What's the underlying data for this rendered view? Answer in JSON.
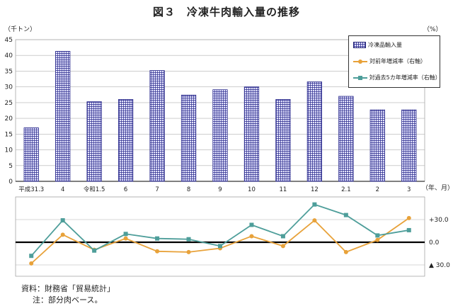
{
  "title": "図３　冷凍牛肉輸入量の推移",
  "left_unit": "（千トン）",
  "right_unit": "（%）",
  "x_unit": "（年、月）",
  "notes": {
    "source": "資料：財務省「貿易統計」",
    "remark": "注：部分肉ベース。"
  },
  "legend": {
    "volume": "冷凍品輸入量",
    "yoy": "対前年増減率（右軸）",
    "vs5y": "対過去5カ年増減率（右軸）"
  },
  "colors": {
    "bar_fill": "#e6e6ff",
    "bar_hatch": "#2a2a8c",
    "yoy": "#e8a23a",
    "vs5y": "#4e9e9a",
    "axis": "#000000",
    "grid": "#b0b0b0"
  },
  "chart_data": [
    {
      "type": "bar",
      "categories": [
        "平成31.3",
        "4",
        "令和1.5",
        "6",
        "7",
        "8",
        "9",
        "10",
        "11",
        "12",
        "2.1",
        "2",
        "3"
      ],
      "series": [
        {
          "name": "冷凍品輸入量",
          "values": [
            17.0,
            41.3,
            25.3,
            26.0,
            35.2,
            27.4,
            29.1,
            30.0,
            26.0,
            31.6,
            27.0,
            22.7,
            22.7
          ]
        }
      ],
      "ylim": [
        0,
        45
      ],
      "yticks": [
        0,
        5,
        10,
        15,
        20,
        25,
        30,
        35,
        40,
        45
      ],
      "ylabel": "（千トン）",
      "grid": true,
      "legend_position": "top-right"
    },
    {
      "type": "line",
      "categories": [
        "平成31.3",
        "4",
        "令和1.5",
        "6",
        "7",
        "8",
        "9",
        "10",
        "11",
        "12",
        "2.1",
        "2",
        "3"
      ],
      "series": [
        {
          "name": "対前年増減率（右軸）",
          "values": [
            -28.0,
            10.0,
            -10.0,
            5.0,
            -12.0,
            -13.0,
            -8.0,
            8.0,
            -5.0,
            29.0,
            -13.0,
            3.0,
            32.0
          ]
        },
        {
          "name": "対過去5カ年増減率（右軸）",
          "values": [
            -18.0,
            29.0,
            -11.0,
            11.0,
            5.0,
            4.0,
            -5.0,
            23.0,
            8.0,
            50.0,
            36.0,
            9.0,
            16.0
          ]
        }
      ],
      "ylim": [
        -45,
        60
      ],
      "yticks": [
        30,
        0,
        -30
      ],
      "yticklabels": [
        "+30.0",
        "0.0",
        "▲ 30.0"
      ],
      "ylabel": "（%）",
      "xlabel": "（年、月）",
      "grid": true
    }
  ]
}
